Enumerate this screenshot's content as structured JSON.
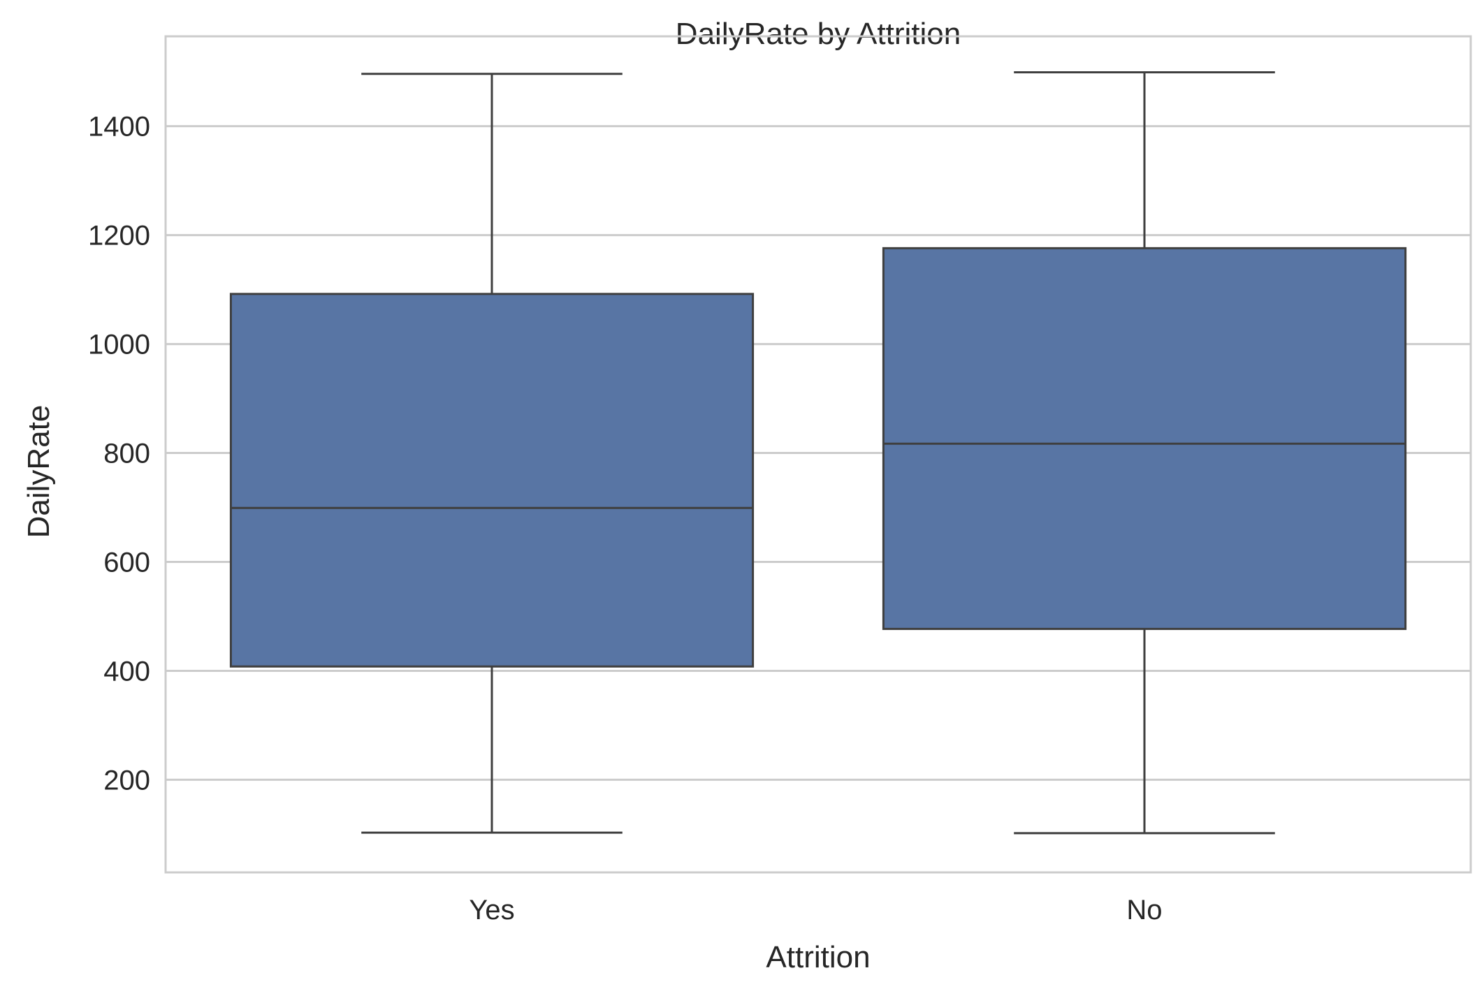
{
  "chart_data": {
    "type": "box",
    "title": "DailyRate by Attrition",
    "xlabel": "Attrition",
    "ylabel": "DailyRate",
    "categories": [
      "Yes",
      "No"
    ],
    "boxes": [
      {
        "category": "Yes",
        "whisker_low": 103,
        "q1": 408,
        "median": 699,
        "q3": 1092,
        "whisker_high": 1496
      },
      {
        "category": "No",
        "whisker_low": 102,
        "q1": 477,
        "median": 817,
        "q3": 1176,
        "whisker_high": 1499
      }
    ],
    "yticks": [
      200,
      400,
      600,
      800,
      1000,
      1200,
      1400
    ],
    "ylim": [
      30,
      1565
    ],
    "grid": true,
    "legend": "none",
    "colors": {
      "box_fill": "#5875a4",
      "box_line": "#3f3f3f",
      "grid": "#cccccc",
      "frame": "#cccccc"
    }
  }
}
